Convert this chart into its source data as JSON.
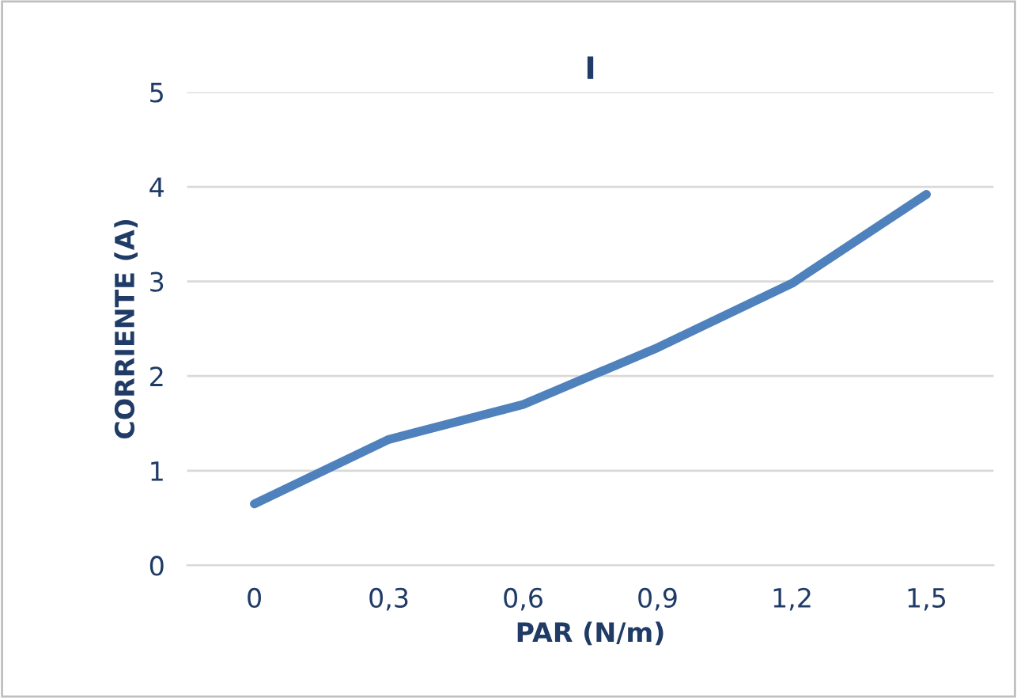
{
  "chart_data": {
    "type": "line",
    "title": "I",
    "xlabel": "PAR (N/m)",
    "ylabel": "CORRIENTE (A)",
    "categories": [
      "0",
      "0,3",
      "0,6",
      "0,9",
      "1,2",
      "1,5"
    ],
    "series": [
      {
        "color": "#4f81bd",
        "values": [
          0.65,
          1.33,
          1.7,
          2.3,
          2.98,
          3.92
        ]
      }
    ],
    "ylim": [
      0,
      5
    ],
    "yticks": [
      0,
      1,
      2,
      3,
      4,
      5
    ],
    "grid": "y",
    "marker": "none",
    "line_style": "solid",
    "legend": false
  }
}
